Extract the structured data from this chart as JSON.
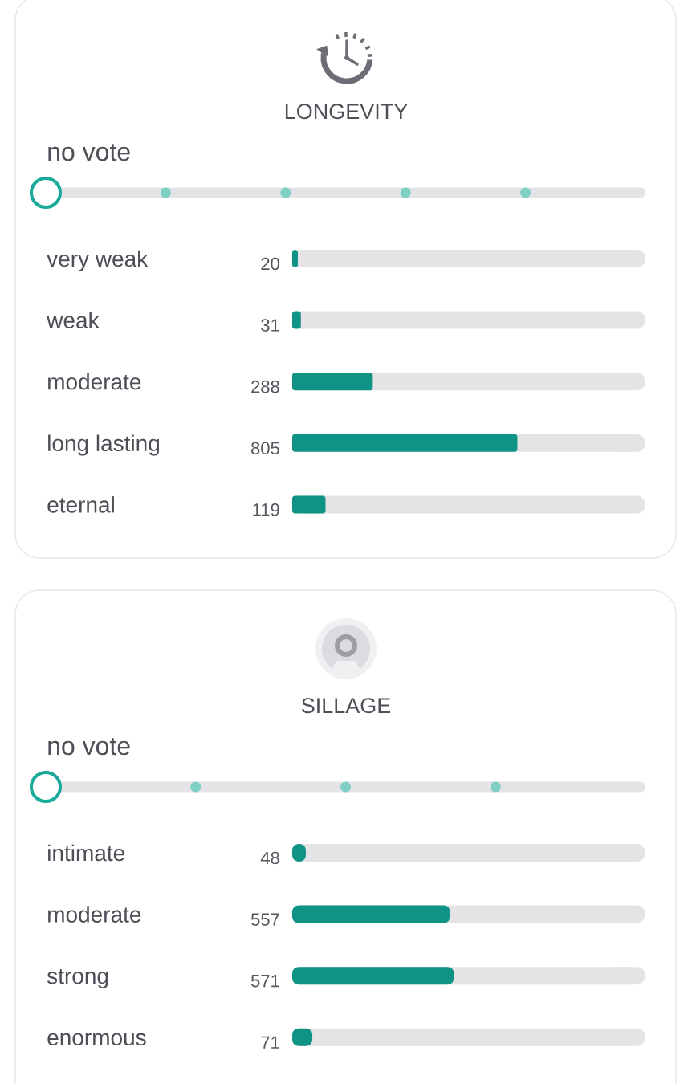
{
  "chart_data": [
    {
      "type": "bar",
      "orientation": "horizontal",
      "title": "LONGEVITY",
      "annotations": [
        "no vote"
      ],
      "categories": [
        "very weak",
        "weak",
        "moderate",
        "long lasting",
        "eternal"
      ],
      "values": [
        20,
        31,
        288,
        805,
        119
      ],
      "color": "#0e9384",
      "data_labels": true
    },
    {
      "type": "bar",
      "orientation": "horizontal",
      "title": "SILLAGE",
      "annotations": [
        "no vote"
      ],
      "categories": [
        "intimate",
        "moderate",
        "strong",
        "enormous"
      ],
      "values": [
        48,
        557,
        571,
        71
      ],
      "color": "#0e9384",
      "data_labels": true
    }
  ]
}
